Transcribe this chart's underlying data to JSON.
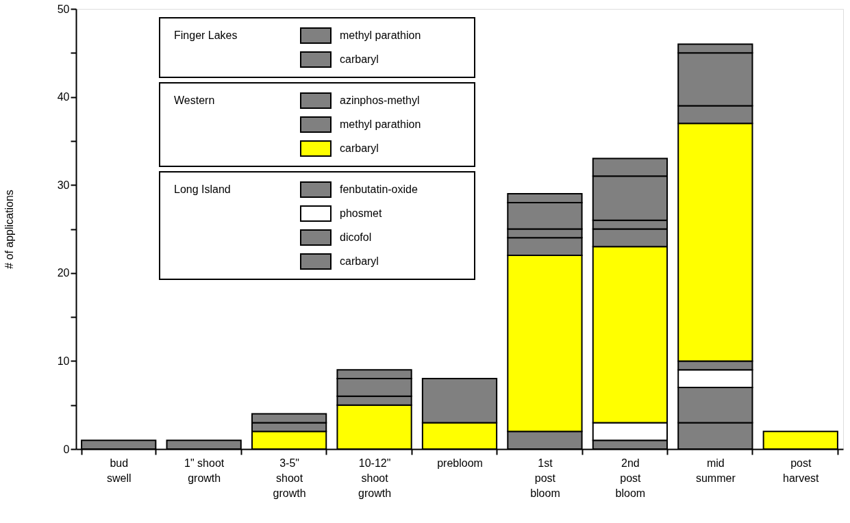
{
  "chart_data": {
    "type": "bar",
    "stacked": true,
    "ylabel": "# of applications",
    "categories": [
      "bud\nswell",
      "1\" shoot\ngrowth",
      "3-5\"\nshoot\ngrowth",
      "10-12\"\nshoot\ngrowth",
      "prebloom",
      "1st\npost\nbloom",
      "2nd\npost\nbloom",
      "mid\nsummer",
      "post\nharvest"
    ],
    "ylim": [
      0,
      50
    ],
    "yticks": [
      0,
      {
        "value": 5,
        "label": null
      },
      10,
      {
        "value": 15,
        "label": null
      },
      20,
      {
        "value": 25,
        "label": null
      },
      30,
      {
        "value": 35,
        "label": null
      },
      40,
      {
        "value": 45,
        "label": null
      },
      50
    ],
    "grid": false,
    "legend": "top left",
    "annotations": [
      "Finger Lakes",
      "Western",
      "Long Island"
    ],
    "series": [
      {
        "name": "carbaryl",
        "color": "#808080",
        "values": [
          null,
          null,
          null,
          null,
          null,
          2,
          1,
          3,
          null
        ]
      },
      {
        "name": "dicofol",
        "color": "#808080",
        "values": [
          null,
          null,
          null,
          null,
          null,
          null,
          null,
          4,
          null
        ]
      },
      {
        "name": "phosmet",
        "color": "#ffffff",
        "values": [
          null,
          null,
          null,
          null,
          null,
          null,
          2,
          2,
          null
        ]
      },
      {
        "name": "fenbutatin-oxide",
        "color": "#808080",
        "values": [
          null,
          null,
          null,
          null,
          null,
          null,
          null,
          1,
          null
        ]
      },
      {
        "name": "carbaryl",
        "color": "#ffff00",
        "values": [
          null,
          null,
          2,
          5,
          3,
          20,
          20,
          27,
          2
        ]
      },
      {
        "name": "methyl parathion",
        "color": "#808080",
        "values": [
          null,
          null,
          1,
          1,
          null,
          2,
          2,
          2,
          null
        ]
      },
      {
        "name": "azinphos-methyl",
        "color": "#808080",
        "values": [
          null,
          null,
          1,
          2,
          5,
          1,
          1,
          6,
          null
        ]
      },
      {
        "name": "carbaryl",
        "color": "#808080",
        "values": [
          null,
          null,
          null,
          1,
          null,
          3,
          5,
          1,
          null
        ]
      },
      {
        "name": "methyl parathion",
        "color": "#808080",
        "values": [
          1,
          1,
          null,
          null,
          null,
          1,
          2,
          null,
          null
        ]
      }
    ]
  }
}
